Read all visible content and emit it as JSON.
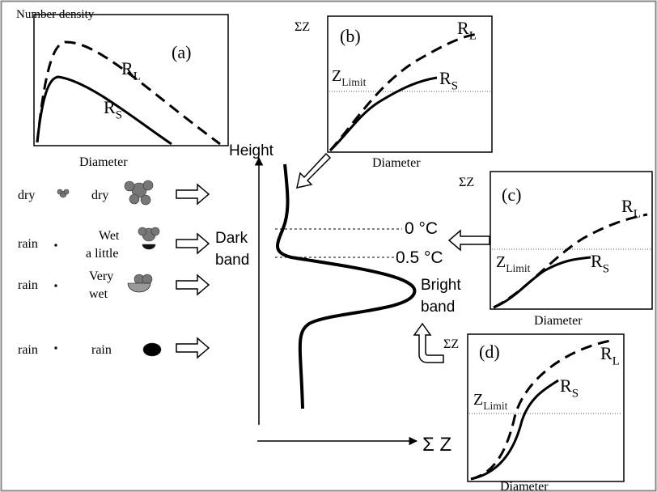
{
  "panels": {
    "a": {
      "label": "(a)",
      "y_label": "Number density",
      "x_label": "Diameter",
      "rl": {
        "base": "R",
        "sub": "L"
      },
      "rs": {
        "base": "R",
        "sub": "S"
      }
    },
    "b": {
      "label": "(b)",
      "y_label": "ΣZ",
      "x_label": "Diameter",
      "limit": {
        "base": "Z",
        "sub": "Limit"
      },
      "rl": {
        "base": "R",
        "sub": "L"
      },
      "rs": {
        "base": "R",
        "sub": "S"
      }
    },
    "c": {
      "label": "(c)",
      "y_label": "ΣZ",
      "x_label": "Diameter",
      "limit": {
        "base": "Z",
        "sub": "Limit"
      },
      "rl": {
        "base": "R",
        "sub": "L"
      },
      "rs": {
        "base": "R",
        "sub": "S"
      }
    },
    "d": {
      "label": "(d)",
      "y_label": "ΣZ",
      "x_label": "Diameter",
      "limit": {
        "base": "Z",
        "sub": "Limit"
      },
      "rl": {
        "base": "R",
        "sub": "L"
      },
      "rs": {
        "base": "R",
        "sub": "S"
      }
    }
  },
  "rows": [
    {
      "left": "dry",
      "right": [
        "dry"
      ]
    },
    {
      "left": "rain",
      "right": [
        "Wet",
        "a little"
      ]
    },
    {
      "left": "rain",
      "right": [
        "Very",
        "wet"
      ]
    },
    {
      "left": "rain",
      "right": [
        "rain"
      ]
    }
  ],
  "profile": {
    "y_label": "Height",
    "x_label": "Σ Z",
    "dark_band": [
      "Dark",
      "band"
    ],
    "bright_band": [
      "Bright",
      "band"
    ],
    "level_0": "0 °C",
    "level_05": "0.5 °C"
  }
}
